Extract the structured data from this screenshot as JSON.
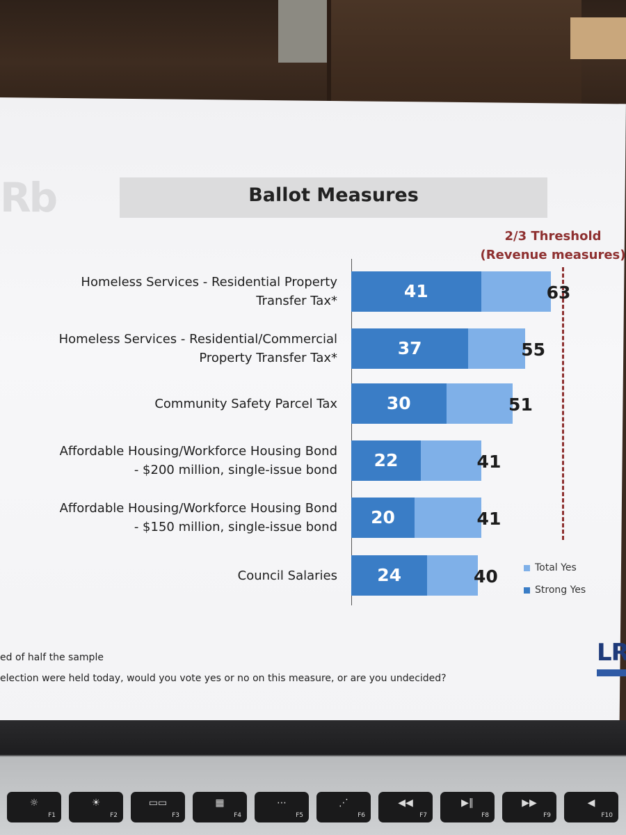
{
  "chart_data": {
    "type": "bar",
    "title": "Ballot Measures",
    "categories": [
      "Homeless Services - Residential Property Transfer Tax*",
      "Homeless Services - Residential/Commercial Property Transfer Tax*",
      "Community Safety Parcel Tax",
      "Affordable Housing/Workforce Housing Bond - $200 million, single-issue bond",
      "Affordable Housing/Workforce Housing Bond - $150 million, single-issue bond",
      "Council Salaries"
    ],
    "category_lines": [
      [
        "Homeless Services - Residential Property",
        "Transfer Tax*"
      ],
      [
        "Homeless Services - Residential/Commercial",
        "Property Transfer Tax*"
      ],
      [
        "Community Safety Parcel Tax"
      ],
      [
        "Affordable Housing/Workforce Housing Bond",
        "- $200 million, single-issue bond"
      ],
      [
        "Affordable Housing/Workforce Housing Bond",
        "- $150 million, single-issue bond"
      ],
      [
        "Council Salaries"
      ]
    ],
    "series": [
      {
        "name": "Total Yes",
        "values": [
          63,
          55,
          51,
          41,
          41,
          40
        ],
        "color": "#7fb0e8"
      },
      {
        "name": "Strong Yes",
        "values": [
          41,
          37,
          30,
          22,
          20,
          24
        ],
        "color": "#3a7dc6"
      }
    ],
    "threshold": {
      "value": 66.7,
      "label_line1": "2/3 Threshold",
      "label_line2": "(Revenue measures)",
      "color": "#8e3030"
    },
    "orientation": "horizontal",
    "grid": false,
    "legend_position": "bottom-right"
  },
  "footnotes": {
    "line1": "ed of half the sample",
    "line2": "election were held today, would you vote yes or no on this measure, or are you undecided?"
  },
  "brand": {
    "text": "LR"
  },
  "keyboard": {
    "keys": [
      {
        "glyph": "☼",
        "fn": "F1"
      },
      {
        "glyph": "☀",
        "fn": "F2"
      },
      {
        "glyph": "▭▭",
        "fn": "F3"
      },
      {
        "glyph": "▦",
        "fn": "F4"
      },
      {
        "glyph": "⋯",
        "fn": "F5"
      },
      {
        "glyph": "⋰",
        "fn": "F6"
      },
      {
        "glyph": "◀◀",
        "fn": "F7"
      },
      {
        "glyph": "▶‖",
        "fn": "F8"
      },
      {
        "glyph": "▶▶",
        "fn": "F9"
      },
      {
        "glyph": "◀",
        "fn": "F10"
      }
    ]
  }
}
